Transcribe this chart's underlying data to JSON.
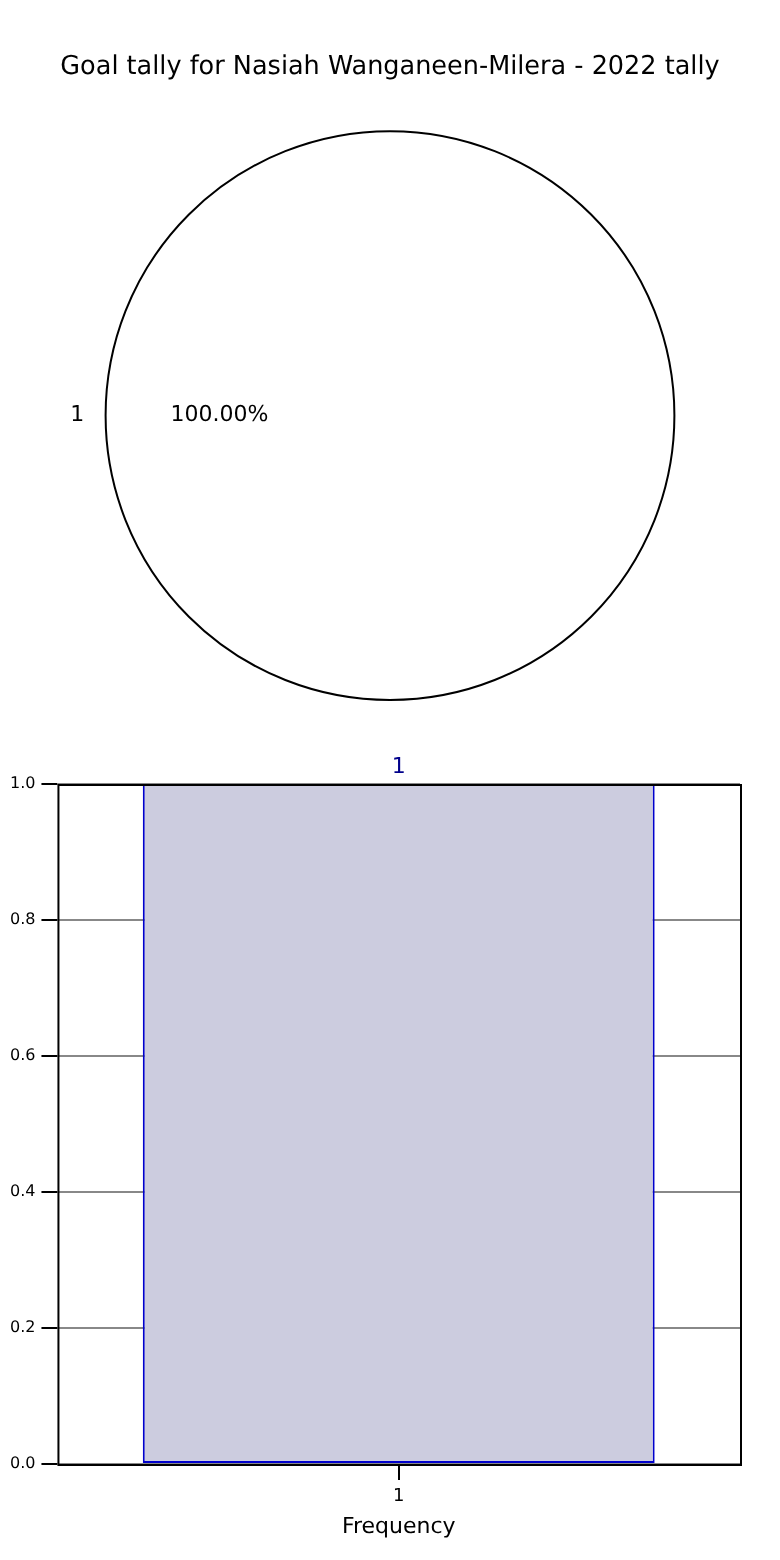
{
  "chart_data": [
    {
      "type": "pie",
      "title": "Goal tally for Nasiah Wanganeen-Milera - 2022 tally",
      "categories": [
        "1"
      ],
      "values": [
        100
      ],
      "colors": [
        "#ffffff"
      ],
      "value_labels": [
        "100.00%"
      ],
      "legend": false
    },
    {
      "type": "bar",
      "xlabel": "Frequency",
      "categories": [
        "1"
      ],
      "values": [
        1
      ],
      "color": "#ccccdf",
      "ylim": [
        0,
        1
      ],
      "yticks": [
        {
          "value": 0,
          "label": "0.0"
        },
        {
          "value": 0.2,
          "label": "0.2"
        },
        {
          "value": 0.4,
          "label": "0.4"
        },
        {
          "value": 0.6,
          "label": "0.6"
        },
        {
          "value": 0.8,
          "label": "0.8"
        },
        {
          "value": 1,
          "label": "1.0"
        }
      ],
      "grid": true,
      "data_labels": true,
      "legend": false
    }
  ]
}
